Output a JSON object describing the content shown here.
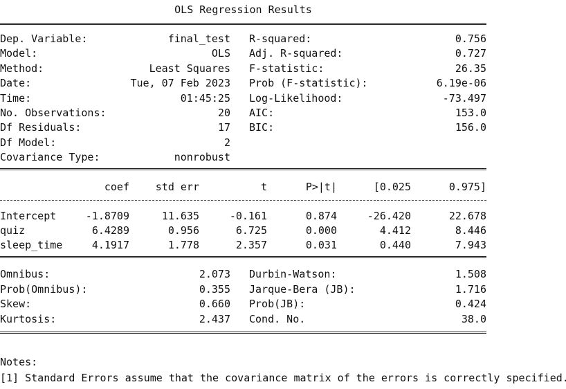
{
  "title": "OLS Regression Results",
  "model_info": [
    {
      "label": "Dep. Variable:",
      "value": "final_test",
      "stat_label": "R-squared:",
      "stat_value": "0.756"
    },
    {
      "label": "Model:",
      "value": "OLS",
      "stat_label": "Adj. R-squared:",
      "stat_value": "0.727"
    },
    {
      "label": "Method:",
      "value": "Least Squares",
      "stat_label": "F-statistic:",
      "stat_value": "26.35"
    },
    {
      "label": "Date:",
      "value": "Tue, 07 Feb 2023",
      "stat_label": "Prob (F-statistic):",
      "stat_value": "6.19e-06"
    },
    {
      "label": "Time:",
      "value": "01:45:25",
      "stat_label": "Log-Likelihood:",
      "stat_value": "-73.497"
    },
    {
      "label": "No. Observations:",
      "value": "20",
      "stat_label": "AIC:",
      "stat_value": "153.0"
    },
    {
      "label": "Df Residuals:",
      "value": "17",
      "stat_label": "BIC:",
      "stat_value": "156.0"
    },
    {
      "label": "Df Model:",
      "value": "2",
      "stat_label": "",
      "stat_value": ""
    },
    {
      "label": "Covariance Type:",
      "value": "nonrobust",
      "stat_label": "",
      "stat_value": ""
    }
  ],
  "coef_table": {
    "headers": [
      "coef",
      "std err",
      "t",
      "P>|t|",
      "[0.025",
      "0.975]"
    ],
    "rows": [
      {
        "name": "Intercept",
        "values": [
          "-1.8709",
          "11.635",
          "-0.161",
          "0.874",
          "-26.420",
          "22.678"
        ]
      },
      {
        "name": "quiz",
        "values": [
          "6.4289",
          "0.956",
          "6.725",
          "0.000",
          "4.412",
          "8.446"
        ]
      },
      {
        "name": "sleep_time",
        "values": [
          "4.1917",
          "1.778",
          "2.357",
          "0.031",
          "0.440",
          "7.943"
        ]
      }
    ]
  },
  "diagnostics": [
    {
      "label": "Omnibus:",
      "value": "2.073",
      "stat_label": "Durbin-Watson:",
      "stat_value": "1.508"
    },
    {
      "label": "Prob(Omnibus):",
      "value": "0.355",
      "stat_label": "Jarque-Bera (JB):",
      "stat_value": "1.716"
    },
    {
      "label": "Skew:",
      "value": "0.660",
      "stat_label": "Prob(JB):",
      "stat_value": "0.424"
    },
    {
      "label": "Kurtosis:",
      "value": "2.437",
      "stat_label": "Cond. No.",
      "stat_value": "38.0"
    }
  ],
  "notes": {
    "heading": "Notes:",
    "items": [
      "[1] Standard Errors assume that the covariance matrix of the errors is correctly specified."
    ]
  }
}
